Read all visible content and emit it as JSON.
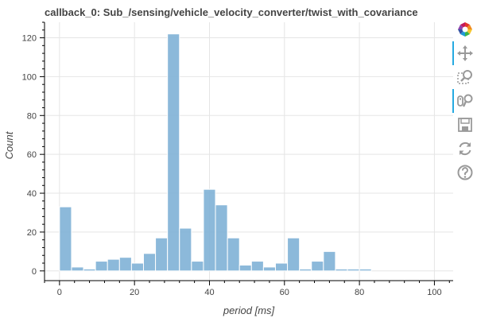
{
  "chart_data": {
    "type": "bar",
    "title": "callback_0: Sub_/sensing/vehicle_velocity_converter/twist_with_covariance",
    "xlabel": "period [ms]",
    "ylabel": "Count",
    "xlim": [
      -4,
      105
    ],
    "ylim": [
      -5,
      128
    ],
    "x_ticks": [
      0,
      20,
      40,
      60,
      80,
      100
    ],
    "y_ticks": [
      0,
      20,
      40,
      60,
      80,
      100,
      120
    ],
    "bin_width": 3.2,
    "bin_start": 0,
    "values": [
      33,
      2,
      1,
      5,
      6,
      7,
      4,
      9,
      17,
      122,
      22,
      5,
      42,
      34,
      17,
      3,
      5,
      2,
      4,
      17,
      1,
      5,
      10,
      1,
      1,
      1,
      0,
      0,
      0,
      0
    ],
    "bar_color": "#7fb1d6",
    "grid": true,
    "legend": "none"
  },
  "toolbar": {
    "items": [
      {
        "name": "bokeh-logo-icon",
        "active": false
      },
      {
        "name": "pan-tool-icon",
        "active": true
      },
      {
        "name": "box-zoom-tool-icon",
        "active": false
      },
      {
        "name": "wheel-zoom-tool-icon",
        "active": true
      },
      {
        "name": "save-tool-icon",
        "active": false
      },
      {
        "name": "reset-tool-icon",
        "active": false
      },
      {
        "name": "help-tool-icon",
        "active": false
      }
    ],
    "icon_color": "#9a9a9a",
    "active_color": "#26aae1"
  }
}
